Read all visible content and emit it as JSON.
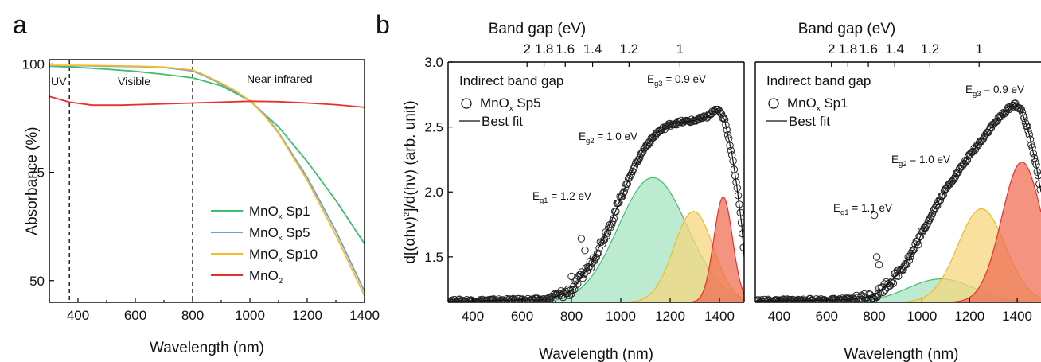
{
  "chart_data": [
    {
      "panel": "a",
      "type": "line",
      "xlabel": "Wavelength (nm)",
      "ylabel": "Absorbance (%)",
      "xlim": [
        300,
        1400
      ],
      "ylim": [
        45,
        101
      ],
      "xticks": [
        400,
        600,
        800,
        1000,
        1200,
        1400
      ],
      "yticks": [
        50,
        75,
        100
      ],
      "regions": [
        {
          "label": "UV",
          "from": 300,
          "to": 370
        },
        {
          "label": "Visible",
          "from": 370,
          "to": 800
        },
        {
          "label": "Near-infrared",
          "from": 800,
          "to": 1400
        }
      ],
      "dividers": [
        370,
        800
      ],
      "legend_position": "bottom-right",
      "series": [
        {
          "name": "MnOx Sp1",
          "base": "MnO",
          "sub": "x",
          "rest": " Sp1",
          "color": "#3cc069",
          "x": [
            300,
            400,
            500,
            600,
            700,
            800,
            900,
            1000,
            1100,
            1200,
            1300,
            1400
          ],
          "y": [
            99.5,
            99.2,
            98.8,
            98.3,
            97.6,
            96.8,
            95.0,
            91.5,
            85.5,
            77.5,
            68.5,
            58.5
          ]
        },
        {
          "name": "MnOx Sp5",
          "base": "MnO",
          "sub": "x",
          "rest": " Sp5",
          "color": "#6a9fd8",
          "x": [
            300,
            400,
            500,
            600,
            700,
            800,
            850,
            900,
            950,
            1000,
            1050,
            1100,
            1200,
            1300,
            1400
          ],
          "y": [
            99.6,
            99.6,
            99.5,
            99.4,
            99.2,
            98.4,
            97.0,
            95.4,
            93.6,
            91.5,
            88.5,
            84.2,
            73.8,
            61.5,
            47.5
          ]
        },
        {
          "name": "MnOx Sp10",
          "base": "MnO",
          "sub": "x",
          "rest": " Sp10",
          "color": "#f5bb2c",
          "x": [
            300,
            400,
            500,
            600,
            700,
            800,
            850,
            900,
            950,
            1000,
            1050,
            1100,
            1200,
            1300,
            1400
          ],
          "y": [
            99.7,
            99.7,
            99.6,
            99.5,
            99.3,
            98.6,
            97.2,
            95.6,
            93.8,
            91.5,
            88.2,
            84.0,
            73.2,
            60.5,
            46.5
          ]
        },
        {
          "name": "MnO2",
          "base": "MnO",
          "sub": "2",
          "rest": "",
          "color": "#e8302e",
          "x": [
            300,
            370,
            450,
            550,
            650,
            800,
            900,
            1000,
            1100,
            1200,
            1300,
            1400
          ],
          "y": [
            92.5,
            91.2,
            90.5,
            90.5,
            90.7,
            91.0,
            91.2,
            91.4,
            91.3,
            91.0,
            90.6,
            90.0
          ]
        }
      ]
    },
    {
      "panel": "b",
      "type": "scatter",
      "title": "Indirect band gap",
      "top_axis_label": "Band gap (eV)",
      "top_ticks": [
        "2",
        "1.8",
        "1.6",
        "1.4",
        "1.2",
        "1"
      ],
      "top_tick_values": [
        2,
        1.8,
        1.6,
        1.4,
        1.2,
        1
      ],
      "xlabel": "Wavelength (nm)",
      "ylabel": "d[(αhν)²]/d(hν) (arb. unit)",
      "ylabel_a": "d[(αhν)",
      "ylabel_sup": "2",
      "ylabel_b": "]/d(hν) (arb. unit)",
      "xlim": [
        300,
        1500
      ],
      "ylim": [
        1.15,
        3.0
      ],
      "xticks": [
        400,
        600,
        800,
        1000,
        1200,
        1400
      ],
      "yticks": [
        1.5,
        2.0,
        2.5,
        3.0
      ],
      "ytick_labels": [
        "1.5",
        "2.0",
        "2.5",
        "3.0"
      ],
      "legend": [
        {
          "symbol": "circle",
          "base": "MnO",
          "sub": "x",
          "rest": " Sp5"
        },
        {
          "symbol": "line",
          "label": "Best fit"
        }
      ],
      "annotations": [
        {
          "base": "E",
          "sub": "g1",
          "rest": " = 1.2 eV"
        },
        {
          "base": "E",
          "sub": "g2",
          "rest": " = 1.0 eV"
        },
        {
          "base": "E",
          "sub": "g3",
          "rest": " = 0.9 eV"
        }
      ],
      "components": [
        {
          "color": "#3cc069",
          "fill": "#a6e4c1",
          "center": 1130,
          "width": 140,
          "amp": 0.96
        },
        {
          "color": "#f0b92a",
          "fill": "#f6d77d",
          "center": 1295,
          "width": 80,
          "amp": 0.7
        },
        {
          "color": "#e8302e",
          "fill": "#ef6f55",
          "center": 1415,
          "width": 38,
          "amp": 0.81
        }
      ],
      "fit_x": [
        300,
        700,
        800,
        880,
        950,
        1000,
        1050,
        1100,
        1150,
        1200,
        1250,
        1300,
        1350,
        1390,
        1420,
        1450,
        1470,
        1490,
        1500
      ],
      "fit_y": [
        1.16,
        1.17,
        1.24,
        1.45,
        1.72,
        1.95,
        2.18,
        2.35,
        2.46,
        2.52,
        2.54,
        2.55,
        2.58,
        2.64,
        2.56,
        2.3,
        2.05,
        1.75,
        1.5
      ],
      "outliers_x": [
        840,
        855,
        800
      ],
      "outliers_y": [
        1.64,
        1.55,
        1.35
      ]
    },
    {
      "panel": "b2",
      "type": "scatter",
      "title": "Indirect band gap",
      "top_axis_label": "Band gap (eV)",
      "top_ticks": [
        "2",
        "1.8",
        "1.6",
        "1.4",
        "1.2",
        "1"
      ],
      "top_tick_values": [
        2,
        1.8,
        1.6,
        1.4,
        1.2,
        1
      ],
      "xlabel": "Wavelength (nm)",
      "xlim": [
        300,
        1500
      ],
      "ylim": [
        1.15,
        3.0
      ],
      "xticks": [
        400,
        600,
        800,
        1000,
        1200,
        1400
      ],
      "legend": [
        {
          "symbol": "circle",
          "base": "MnO",
          "sub": "x",
          "rest": " Sp1"
        },
        {
          "symbol": "line",
          "label": "Best fit"
        }
      ],
      "annotations": [
        {
          "base": "E",
          "sub": "g1",
          "rest": " = 1.1 eV"
        },
        {
          "base": "E",
          "sub": "g2",
          "rest": " = 1.0 eV"
        },
        {
          "base": "E",
          "sub": "g3",
          "rest": " = 0.9 eV"
        }
      ],
      "components": [
        {
          "color": "#3cc069",
          "fill": "#a6e4c1",
          "center": 1080,
          "width": 140,
          "amp": 0.18
        },
        {
          "color": "#f0b92a",
          "fill": "#f6d77d",
          "center": 1250,
          "width": 100,
          "amp": 0.72
        },
        {
          "color": "#e8302e",
          "fill": "#ef6f55",
          "center": 1420,
          "width": 85,
          "amp": 1.08
        }
      ],
      "fit_x": [
        300,
        700,
        800,
        880,
        950,
        1000,
        1050,
        1100,
        1150,
        1200,
        1250,
        1300,
        1350,
        1390,
        1420,
        1450,
        1480,
        1500
      ],
      "fit_y": [
        1.16,
        1.17,
        1.2,
        1.33,
        1.5,
        1.68,
        1.86,
        2.02,
        2.15,
        2.28,
        2.4,
        2.52,
        2.62,
        2.68,
        2.62,
        2.45,
        2.2,
        2.0
      ],
      "outliers_x": [
        800,
        810,
        820
      ],
      "outliers_y": [
        1.82,
        1.5,
        1.44
      ]
    }
  ]
}
